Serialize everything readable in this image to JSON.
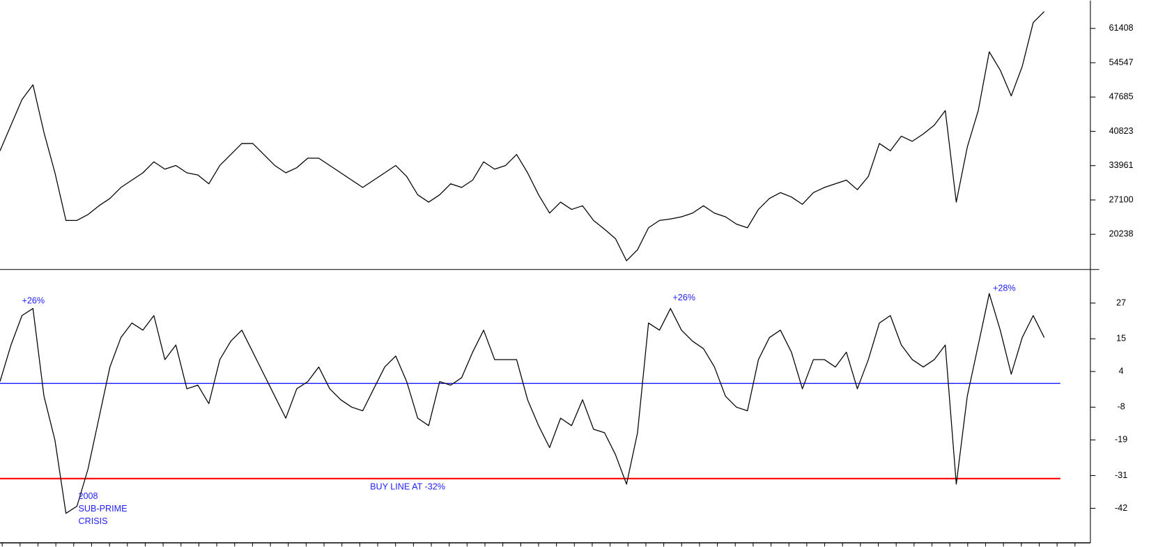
{
  "chart_data": [
    {
      "type": "line",
      "series": [
        {
          "color": "#000000",
          "values": [
            36927,
            42058,
            47189,
            50121,
            40592,
            32529,
            23000,
            23000,
            24173,
            25932,
            27398,
            29597,
            31063,
            32529,
            34728,
            33262,
            33995,
            32529,
            32089,
            30330,
            33995,
            36194,
            38393,
            38393,
            36194,
            33995,
            32529,
            33555,
            35461,
            35461,
            33995,
            32529,
            31063,
            29597,
            31063,
            32529,
            33995,
            31796,
            28131,
            26665,
            28131,
            30330,
            29597,
            31063,
            34728,
            33262,
            33995,
            36194,
            32529,
            28131,
            24466,
            26665,
            25199,
            25932,
            23000,
            21241,
            19335,
            14937,
            17136,
            21534,
            23000,
            23293,
            23733,
            24466,
            25932,
            24466,
            23733,
            22267,
            21534,
            25199,
            27398,
            28571,
            27691,
            26225,
            28571,
            29597,
            30330,
            31063,
            29157,
            31796,
            38393,
            36927,
            39859,
            38833,
            40299,
            42058,
            44990,
            26665,
            37660,
            44990,
            56718,
            53053,
            47922,
            53786,
            62582,
            64781
          ]
        }
      ],
      "ylim": [
        13200,
        66980
      ],
      "yticks": [
        20238,
        27100,
        33961,
        40823,
        47685,
        54547,
        61408
      ]
    },
    {
      "type": "line",
      "series": [
        {
          "color": "#000000",
          "values": [
            0.6,
            12.9,
            22.8,
            25.2,
            -4.3,
            -19.1,
            -43.7,
            -41.3,
            -28.9,
            -11.7,
            5.5,
            15.4,
            20.3,
            17.9,
            22.8,
            8.0,
            12.9,
            -1.8,
            -0.6,
            -6.8,
            8.0,
            14.2,
            17.9,
            10.5,
            3.1,
            -4.3,
            -11.7,
            -1.8,
            0.6,
            5.5,
            -1.8,
            -5.5,
            -8.0,
            -9.2,
            -1.8,
            5.5,
            9.2,
            0.6,
            -11.7,
            -14.2,
            0.6,
            -0.6,
            1.9,
            10.5,
            17.9,
            8.0,
            8.0,
            8.0,
            -5.5,
            -14.2,
            -21.6,
            -11.7,
            -14.2,
            -5.5,
            -15.4,
            -16.6,
            -24.0,
            -33.9,
            -16.6,
            20.3,
            17.9,
            25.2,
            17.9,
            14.2,
            11.7,
            5.5,
            -4.3,
            -8.0,
            -9.2,
            8.0,
            15.4,
            17.9,
            10.5,
            -1.8,
            8.0,
            8.0,
            5.5,
            10.5,
            -1.8,
            8.0,
            20.3,
            22.8,
            12.9,
            8.0,
            5.5,
            8.0,
            12.9,
            -33.9,
            -4.3,
            12.9,
            30.2,
            17.9,
            3.1,
            15.4,
            22.8,
            15.4
          ]
        }
      ],
      "ylim": [
        -53.6,
        38.3
      ],
      "yticks": [
        -42,
        -31,
        -19,
        -8,
        4,
        15,
        27
      ],
      "hlines": [
        {
          "value": 0,
          "color": "#0000ff"
        },
        {
          "value": -32,
          "color": "#ff0000"
        }
      ],
      "annotations": [
        {
          "text": "+26%"
        },
        {
          "text": "+26%"
        },
        {
          "text": "+28%"
        },
        {
          "text": "BUY LINE AT -32%"
        },
        {
          "text": "2008"
        },
        {
          "text": "SUB-PRIME"
        },
        {
          "text": "CRISIS"
        }
      ]
    }
  ]
}
